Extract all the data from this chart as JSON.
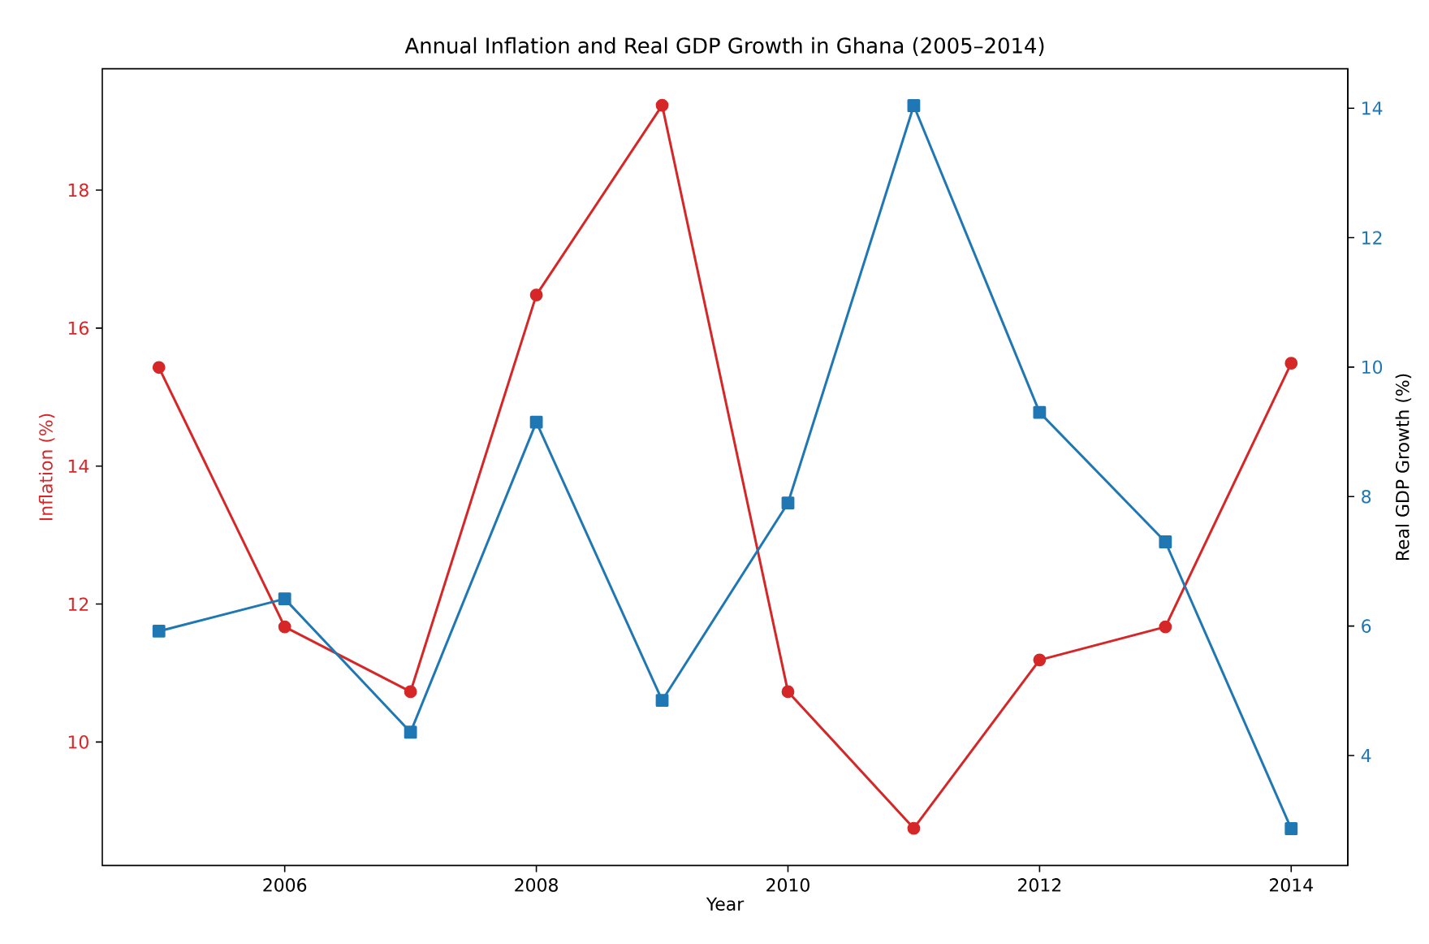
{
  "chart_data": {
    "type": "line",
    "title": "Annual Inflation and Real GDP Growth in Ghana (2005–2014)",
    "xlabel": "Year",
    "ylabel": "Inflation (%)",
    "y2label": "Real GDP Growth (%)",
    "x": [
      2005,
      2006,
      2007,
      2008,
      2009,
      2010,
      2011,
      2012,
      2013,
      2014
    ],
    "xlim": [
      2004.55,
      2014.45
    ],
    "xticks": [
      2006,
      2008,
      2010,
      2012,
      2014
    ],
    "ylim": [
      8.21,
      19.76
    ],
    "yticks": [
      10,
      12,
      14,
      16,
      18
    ],
    "y2lim": [
      2.3,
      14.61
    ],
    "y2ticks": [
      4,
      6,
      8,
      10,
      12,
      14
    ],
    "series": [
      {
        "color": "#d62728",
        "marker": "circle",
        "axis": "y",
        "values": [
          15.43,
          11.67,
          10.73,
          16.48,
          19.23,
          10.73,
          8.75,
          11.19,
          11.67,
          15.49
        ]
      },
      {
        "color": "#1f77b4",
        "marker": "square",
        "axis": "y2",
        "values": [
          5.92,
          6.42,
          4.36,
          9.15,
          4.85,
          7.9,
          14.04,
          9.3,
          7.3,
          2.87
        ]
      }
    ]
  }
}
